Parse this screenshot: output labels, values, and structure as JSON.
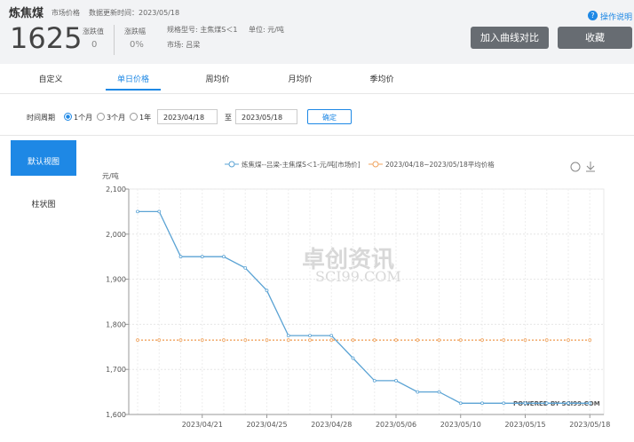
{
  "header": {
    "title": "炼焦煤",
    "price_type": "市场价格",
    "update_time": "数据更新时间：2023/05/18",
    "price": "1625",
    "change_label": "涨跌值",
    "change": "0",
    "change_pct_label": "涨跌幅",
    "change_pct": "0%",
    "spec": "规格型号: 主焦煤S＜1",
    "unit": "单位: 元/吨",
    "market": "市场: 吕梁",
    "help": "操作说明",
    "buttons": [
      "加入曲线对比",
      "收藏"
    ]
  },
  "tabs": {
    "items": [
      "自定义",
      "单日价格",
      "周均价",
      "月均价",
      "季均价"
    ],
    "active": 1
  },
  "filter": {
    "label": "时间周期",
    "periods": [
      "1个月",
      "3个月",
      "1年"
    ],
    "selected": 0,
    "start": "2023/04/18",
    "to": "至",
    "end": "2023/05/18",
    "confirm": "确定"
  },
  "sidebar": {
    "items": [
      "默认视图",
      "柱状图"
    ],
    "active": 0
  },
  "watermark": {
    "brand": "卓创资讯",
    "site": "SCI99.COM",
    "powered": "POWERED BY SCI99.COM"
  },
  "chart_data": {
    "type": "line",
    "y_label": "元/吨",
    "categories": [
      null,
      null,
      null,
      "2023/04/21",
      null,
      null,
      "2023/04/25",
      null,
      null,
      "2023/04/28",
      null,
      null,
      "2023/05/06",
      null,
      null,
      "2023/05/10",
      null,
      null,
      "2023/05/15",
      null,
      null,
      "2023/05/18"
    ],
    "series": [
      {
        "name": "炼焦煤--吕梁-主焦煤S＜1-元/吨[市场价]",
        "color": "#5ba3d4",
        "values": [
          2050,
          2050,
          1950,
          1950,
          1950,
          1925,
          1875,
          1775,
          1775,
          1775,
          1725,
          1675,
          1675,
          1650,
          1650,
          1625,
          1625,
          1625,
          1625,
          1625,
          1625,
          1625
        ]
      },
      {
        "name": "2023/04/18~2023/05/18平均价格",
        "color": "#f0a35e",
        "values": [
          1765,
          1765,
          1765,
          1765,
          1765,
          1765,
          1765,
          1765,
          1765,
          1765,
          1765,
          1765,
          1765,
          1765,
          1765,
          1765,
          1765,
          1765,
          1765,
          1765,
          1765,
          1765
        ]
      }
    ],
    "ylim": [
      1600,
      2100
    ],
    "yticks": [
      {
        "value": 1600,
        "label": "1,600"
      },
      {
        "value": 1700,
        "label": "1,700"
      },
      {
        "value": 1800,
        "label": "1,800"
      },
      {
        "value": 1900,
        "label": "1,900"
      },
      {
        "value": 2000,
        "label": "2,000"
      },
      {
        "value": 2100,
        "label": "2,100"
      }
    ],
    "grid": true
  }
}
